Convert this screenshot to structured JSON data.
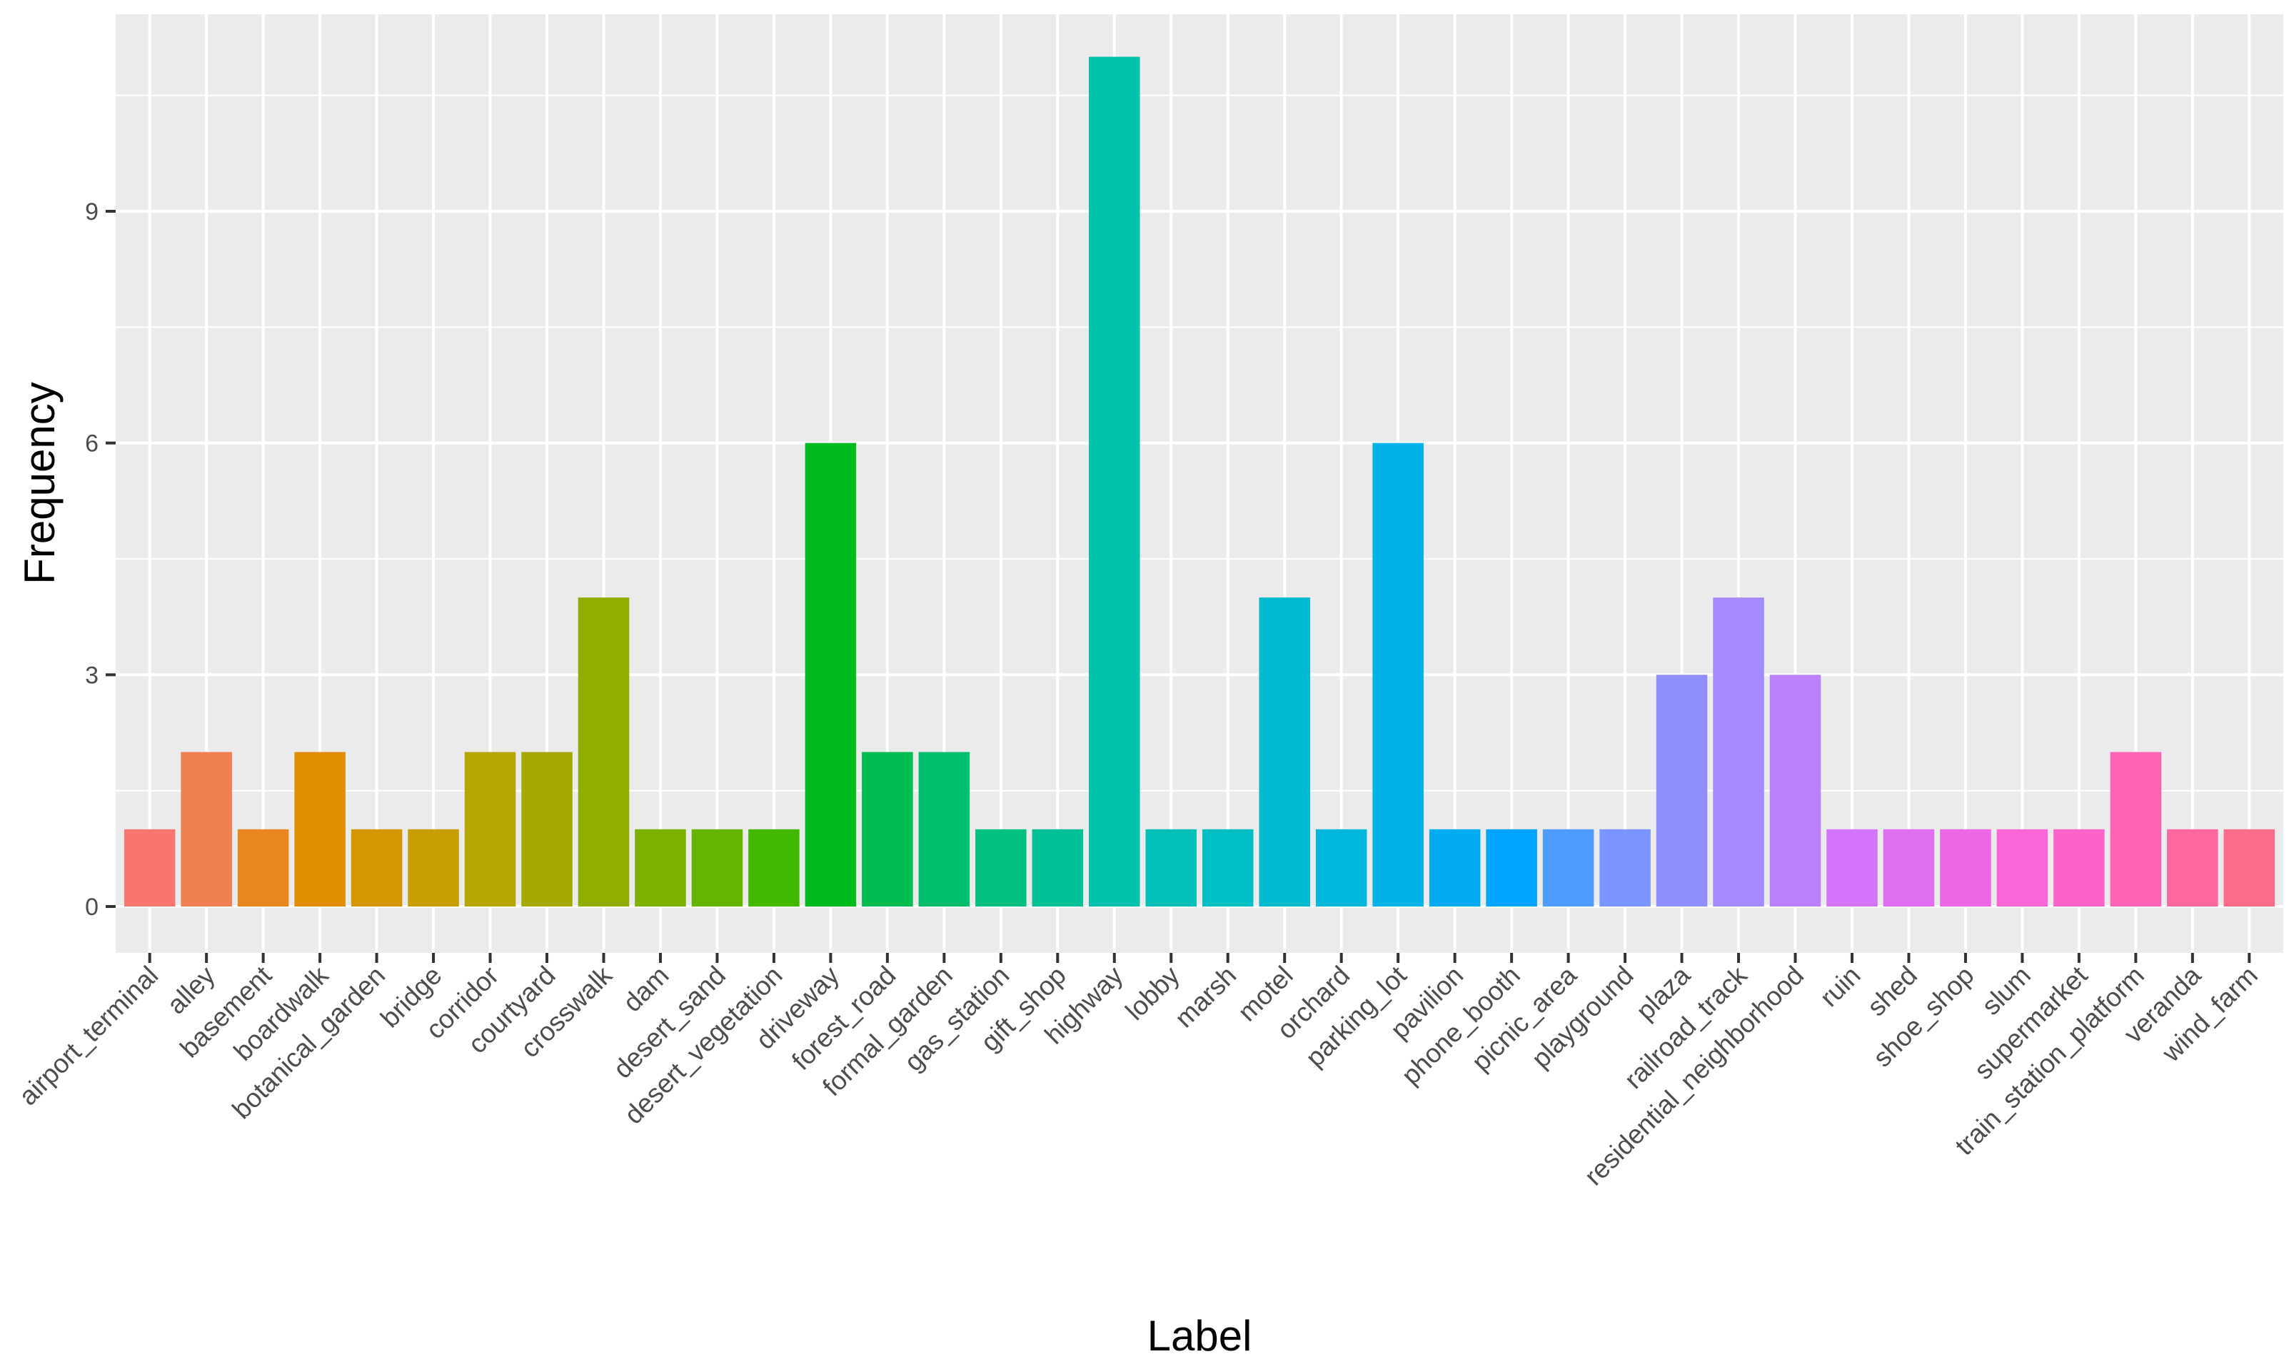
{
  "chart_data": {
    "type": "bar",
    "title": "",
    "xlabel": "Label",
    "ylabel": "Frequency",
    "ylim": [
      -0.6,
      11.55
    ],
    "y_ticks": [
      0,
      3,
      6,
      9
    ],
    "y_tick_labels": [
      "0",
      "3",
      "6",
      "9"
    ],
    "grid": true,
    "legend": "none",
    "categories": [
      "airport_terminal",
      "alley",
      "basement",
      "boardwalk",
      "botanical_garden",
      "bridge",
      "corridor",
      "courtyard",
      "crosswalk",
      "dam",
      "desert_sand",
      "desert_vegetation",
      "driveway",
      "forest_road",
      "formal_garden",
      "gas_station",
      "gift_shop",
      "highway",
      "lobby",
      "marsh",
      "motel",
      "orchard",
      "parking_lot",
      "pavilion",
      "phone_booth",
      "picnic_area",
      "playground",
      "plaza",
      "railroad_track",
      "residential_neighborhood",
      "ruin",
      "shed",
      "shoe_shop",
      "slum",
      "supermarket",
      "train_station_platform",
      "veranda",
      "wind_farm"
    ],
    "values": [
      1,
      2,
      1,
      2,
      1,
      1,
      2,
      2,
      4,
      1,
      1,
      1,
      6,
      2,
      2,
      1,
      1,
      11,
      1,
      1,
      4,
      1,
      6,
      1,
      1,
      1,
      1,
      3,
      4,
      3,
      1,
      1,
      1,
      1,
      1,
      2,
      1,
      1
    ],
    "colors": [
      "#F8766D",
      "#F07F51",
      "#E98821",
      "#E18F00",
      "#D49700",
      "#C89E00",
      "#B7A600",
      "#A5A900",
      "#92AD00",
      "#7CB100",
      "#64B400",
      "#43B800",
      "#00BB1C",
      "#00BD52",
      "#00BF6A",
      "#00C080",
      "#00C095",
      "#00C1AA",
      "#00C0B8",
      "#00BFC4",
      "#00BBD0",
      "#00B7DB",
      "#00B3E6",
      "#00ACEF",
      "#00A5FF",
      "#4F9CFF",
      "#7A95FF",
      "#8E8FFC",
      "#A58AFF",
      "#BD80FC",
      "#D574FB",
      "#E06EF1",
      "#EC68E4",
      "#F866D8",
      "#FB63C8",
      "#FF63B4",
      "#FD67A0",
      "#F96D8B"
    ]
  }
}
